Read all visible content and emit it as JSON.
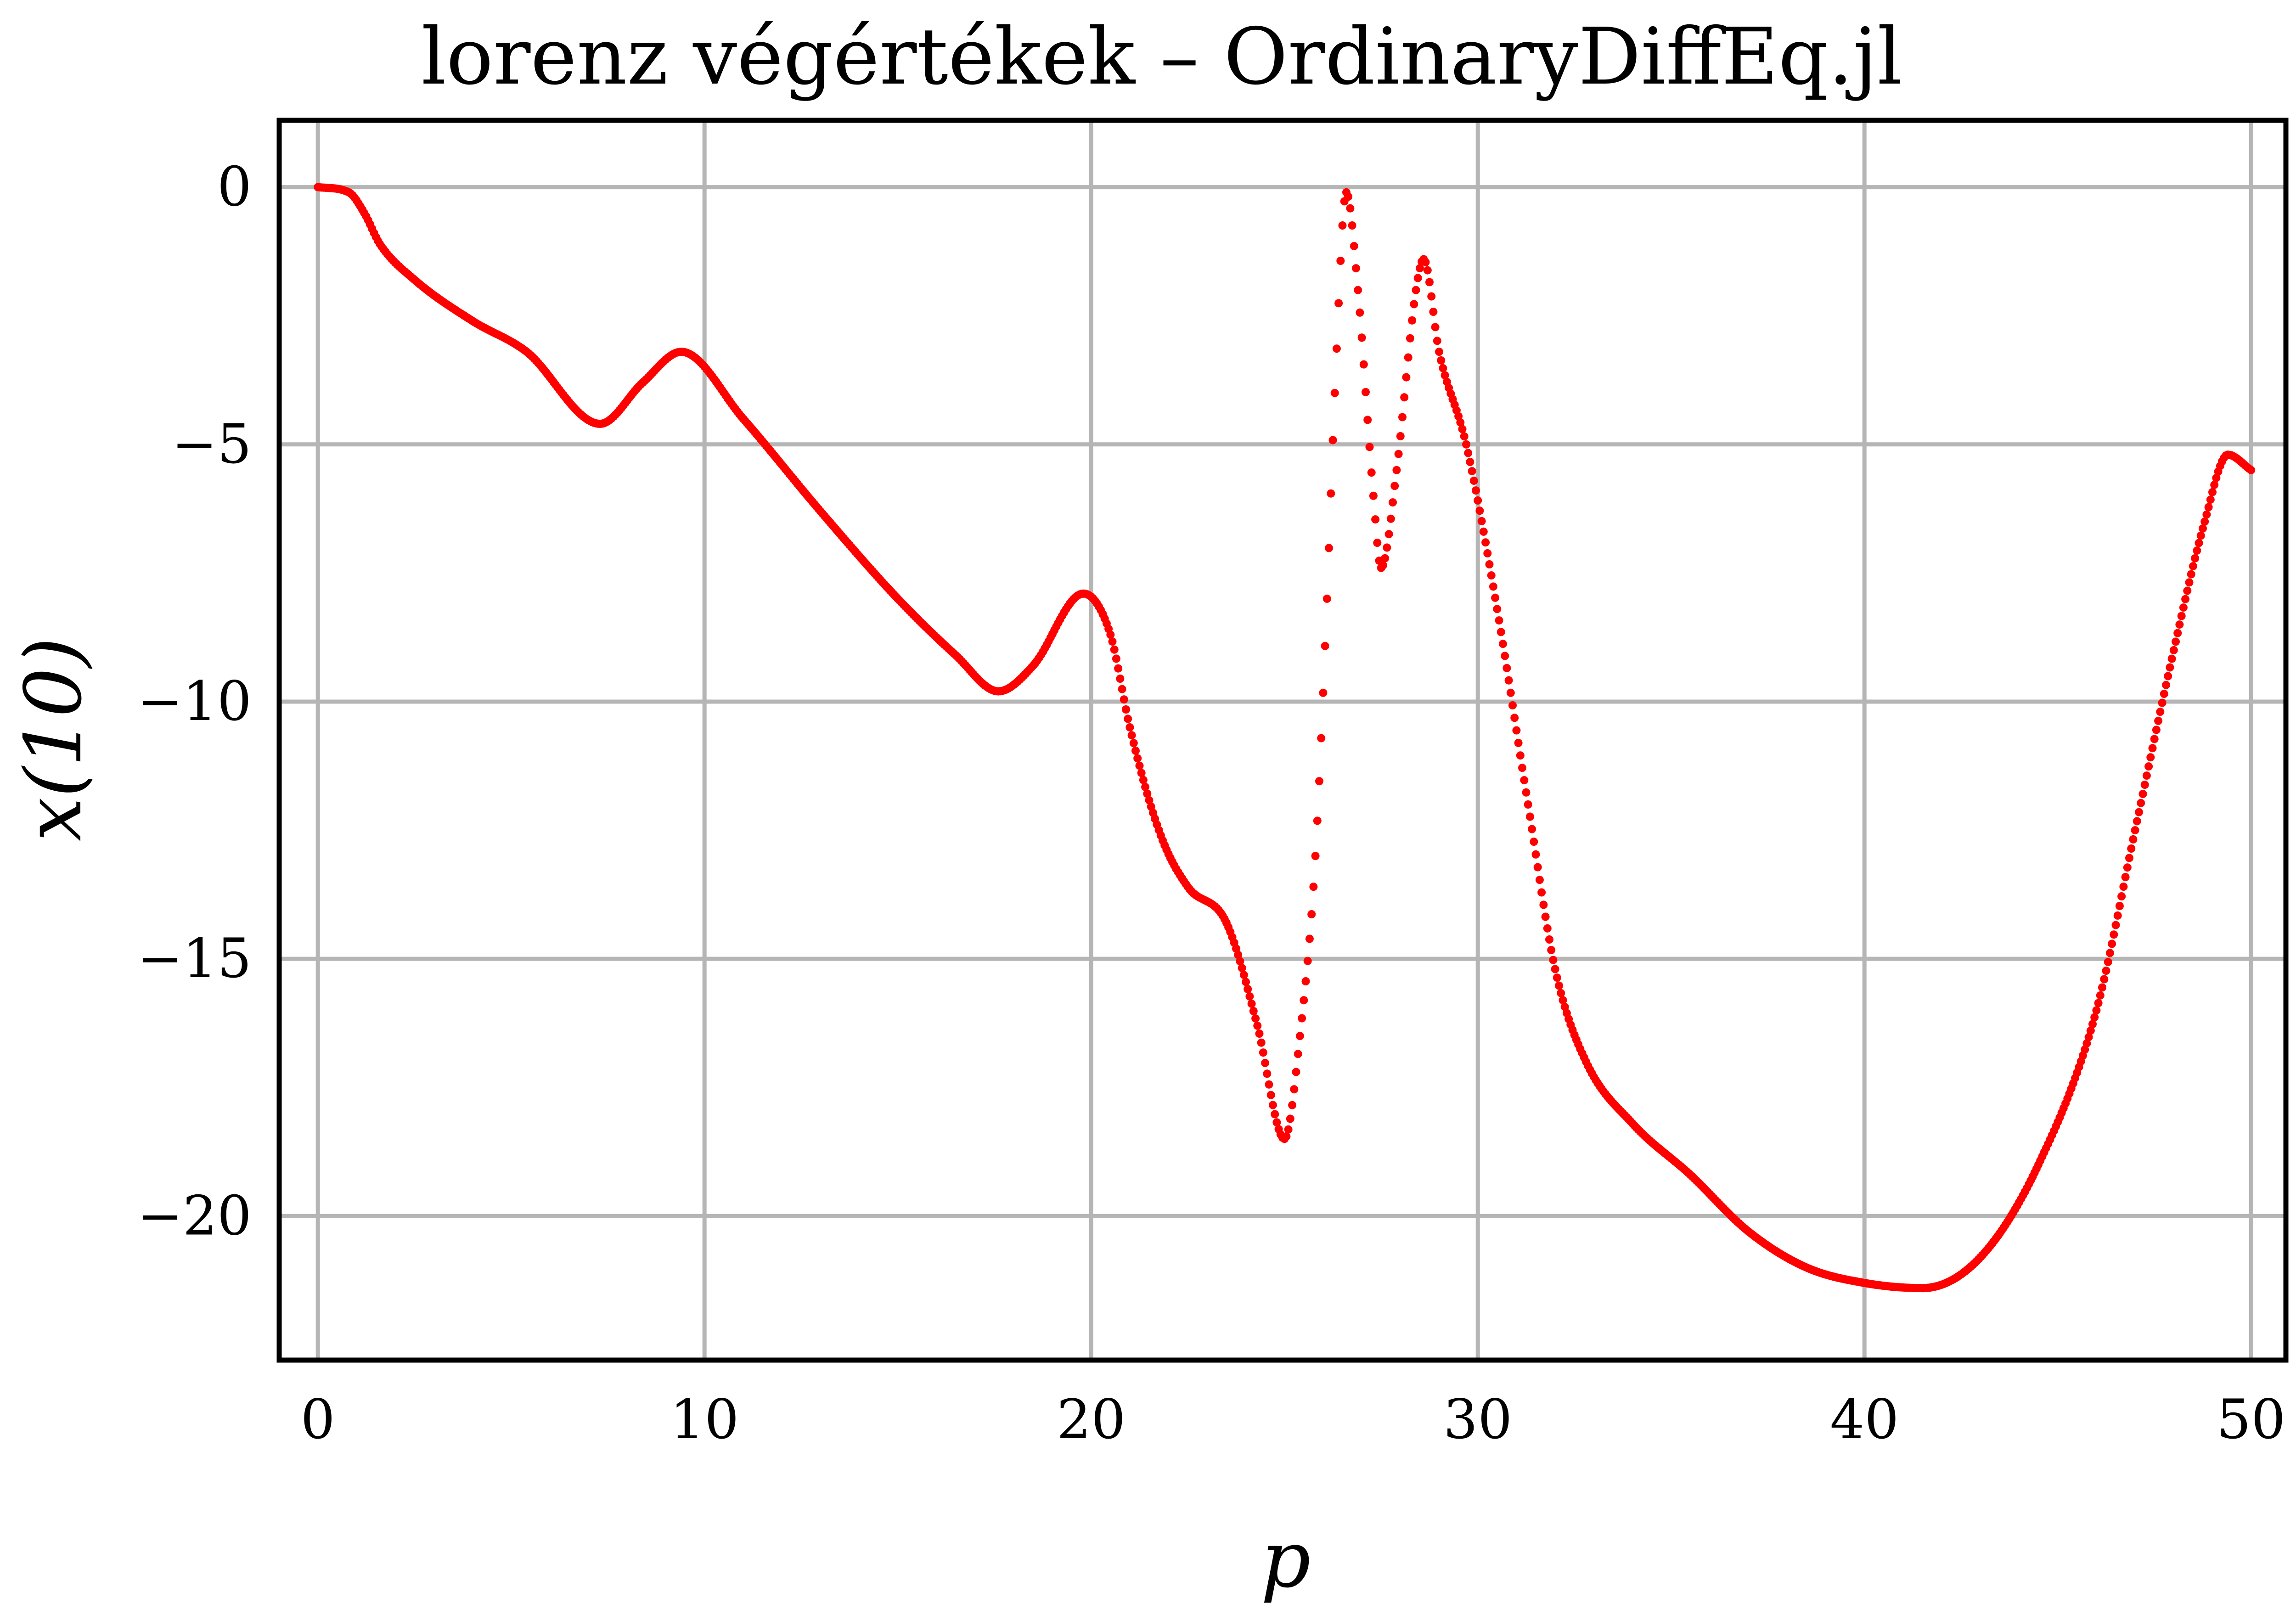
{
  "chart_data": {
    "type": "scatter",
    "title": "lorenz végértékek – OrdinaryDiffEq.jl",
    "xlabel": "p",
    "ylabel": "x(10)",
    "xlim": [
      -1,
      50.9
    ],
    "ylim": [
      -22.8,
      1.3
    ],
    "xticks": [
      0,
      10,
      20,
      30,
      40,
      50
    ],
    "yticks": [
      0,
      -5,
      -10,
      -15,
      -20
    ],
    "xtick_labels": [
      "0",
      "10",
      "20",
      "30",
      "40",
      "50"
    ],
    "ytick_labels": [
      "0",
      "−5",
      "−10",
      "−15",
      "−20"
    ],
    "grid": true,
    "legend": "none",
    "series_color": "#ff0000",
    "anchor_points": [
      [
        0,
        0
      ],
      [
        0.8,
        -0.1
      ],
      [
        1.2,
        -0.5
      ],
      [
        1.6,
        -1.1
      ],
      [
        2.5,
        -1.8
      ],
      [
        4,
        -2.6
      ],
      [
        5.4,
        -3.2
      ],
      [
        7.3,
        -4.6
      ],
      [
        8.4,
        -3.8
      ],
      [
        9.4,
        -3.2
      ],
      [
        11,
        -4.5
      ],
      [
        13,
        -6.3
      ],
      [
        15,
        -8
      ],
      [
        16.5,
        -9.1
      ],
      [
        17.6,
        -9.8
      ],
      [
        18.5,
        -9.3
      ],
      [
        19.8,
        -7.9
      ],
      [
        20.5,
        -8.7
      ],
      [
        21,
        -10.5
      ],
      [
        21.8,
        -12.6
      ],
      [
        22.5,
        -13.6
      ],
      [
        23.5,
        -14.3
      ],
      [
        24.3,
        -16.3
      ],
      [
        25,
        -18.5
      ],
      [
        25.4,
        -16.5
      ],
      [
        25.8,
        -13
      ],
      [
        26.1,
        -8
      ],
      [
        26.3,
        -4
      ],
      [
        26.6,
        -0.1
      ],
      [
        26.9,
        -2
      ],
      [
        27.3,
        -6
      ],
      [
        27.5,
        -7.4
      ],
      [
        27.9,
        -5.5
      ],
      [
        28.4,
        -2
      ],
      [
        28.6,
        -1.4
      ],
      [
        29,
        -3.2
      ],
      [
        29.7,
        -5
      ],
      [
        30.5,
        -8.2
      ],
      [
        31.3,
        -12
      ],
      [
        32,
        -15.2
      ],
      [
        32.8,
        -17
      ],
      [
        34,
        -18.2
      ],
      [
        35.5,
        -19.2
      ],
      [
        37,
        -20.3
      ],
      [
        38.5,
        -21
      ],
      [
        40,
        -21.3
      ],
      [
        41.5,
        -21.4
      ],
      [
        43,
        -20.8
      ],
      [
        44.5,
        -19
      ],
      [
        46,
        -16
      ],
      [
        47,
        -12.5
      ],
      [
        48,
        -9
      ],
      [
        48.8,
        -6.5
      ],
      [
        49.4,
        -5.2
      ],
      [
        50,
        -5.5
      ]
    ]
  }
}
